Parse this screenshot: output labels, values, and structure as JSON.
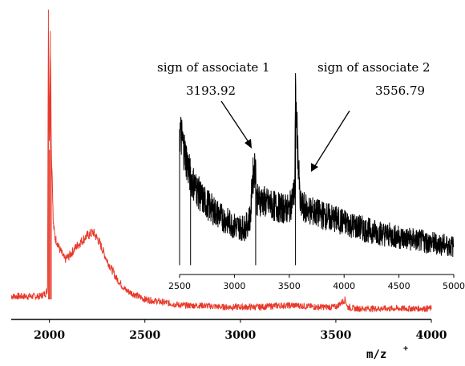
{
  "chart_data": [
    {
      "type": "line",
      "title": "",
      "xlabel": "m/z",
      "xlabel_superscript": "+",
      "ylabel": "",
      "xlim": [
        1800,
        4000
      ],
      "x_ticks": [
        2000,
        2500,
        3000,
        3500,
        4000
      ],
      "y_ticks": [],
      "grid": false,
      "series": [
        {
          "color": "#e8392a",
          "x": [
            1800,
            1850,
            1900,
            1950,
            1980,
            1990,
            1995,
            2000,
            2005,
            2010,
            2015,
            2020,
            2030,
            2040,
            2050,
            2080,
            2100,
            2150,
            2200,
            2230,
            2260,
            2300,
            2350,
            2400,
            2500,
            2600,
            2700,
            2800,
            2900,
            3000,
            3100,
            3200,
            3300,
            3400,
            3500,
            3550,
            3560,
            3600,
            3800,
            4000
          ],
          "values": [
            0.06,
            0.06,
            0.06,
            0.06,
            0.07,
            0.08,
            1.0,
            0.54,
            0.93,
            0.54,
            0.45,
            0.3,
            0.25,
            0.24,
            0.22,
            0.18,
            0.19,
            0.23,
            0.26,
            0.27,
            0.24,
            0.18,
            0.12,
            0.08,
            0.05,
            0.04,
            0.03,
            0.03,
            0.025,
            0.025,
            0.025,
            0.03,
            0.03,
            0.025,
            0.025,
            0.05,
            0.025,
            0.02,
            0.02,
            0.02
          ]
        }
      ]
    },
    {
      "type": "line",
      "title": "",
      "xlabel": "",
      "ylabel": "",
      "xlim": [
        2500,
        5000
      ],
      "x_ticks": [
        2500,
        3000,
        3500,
        4000,
        4500,
        5000
      ],
      "y_ticks": [],
      "grid": false,
      "series": [
        {
          "color": "#000000",
          "x": [
            2500,
            2600,
            2700,
            2800,
            2900,
            3000,
            3100,
            3150,
            3160,
            3193.92,
            3200,
            3250,
            3300,
            3400,
            3500,
            3550,
            3556.79,
            3600,
            3700,
            3800,
            4000,
            4200,
            4500,
            4800,
            5000
          ],
          "values": [
            0.78,
            0.52,
            0.41,
            0.35,
            0.3,
            0.26,
            0.25,
            0.32,
            0.5,
            0.6,
            0.4,
            0.4,
            0.38,
            0.36,
            0.35,
            0.45,
            0.95,
            0.37,
            0.34,
            0.32,
            0.28,
            0.24,
            0.2,
            0.17,
            0.15
          ]
        }
      ],
      "annotations": [
        {
          "label": "sign of associate 1",
          "value": "3193.92",
          "x": 3193.92
        },
        {
          "label": "sign of associate 2",
          "value": "3556.79",
          "x": 3556.79
        }
      ]
    }
  ]
}
